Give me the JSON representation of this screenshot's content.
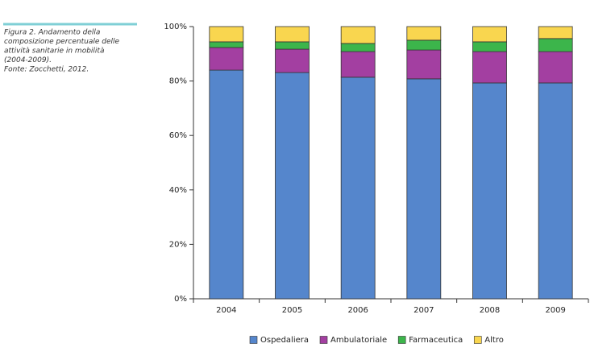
{
  "caption": [
    "Figura 2. Andamento della",
    "composizione percentuale delle",
    "attività sanitarie in mobilità",
    "(2004-2009).",
    "Fonte: Zocchetti, 2012."
  ],
  "chart_data": {
    "type": "stacked-bar",
    "categories": [
      "2004",
      "2005",
      "2006",
      "2007",
      "2008",
      "2009"
    ],
    "series": [
      {
        "name": "Ospedaliera",
        "color": "#5586cc",
        "values": [
          84.0,
          83.1,
          81.4,
          80.8,
          79.3,
          79.3
        ]
      },
      {
        "name": "Ambulatoriale",
        "color": "#a33fa1",
        "values": [
          8.3,
          8.6,
          9.4,
          10.6,
          11.5,
          11.5
        ]
      },
      {
        "name": "Farmaceutica",
        "color": "#3cb54b",
        "values": [
          2.1,
          2.7,
          3.0,
          3.6,
          3.6,
          4.8
        ]
      },
      {
        "name": "Altro",
        "color": "#f9d64f",
        "values": [
          5.6,
          5.6,
          6.2,
          5.0,
          5.6,
          4.4
        ]
      }
    ],
    "ylim": [
      0,
      100
    ],
    "yticks": [
      {
        "value": 0,
        "label": "0%"
      },
      {
        "value": 20,
        "label": "20%"
      },
      {
        "value": 40,
        "label": "40%"
      },
      {
        "value": 60,
        "label": "60%"
      },
      {
        "value": 80,
        "label": "80%"
      },
      {
        "value": 100,
        "label": "100%"
      }
    ],
    "legend": "bottom"
  }
}
